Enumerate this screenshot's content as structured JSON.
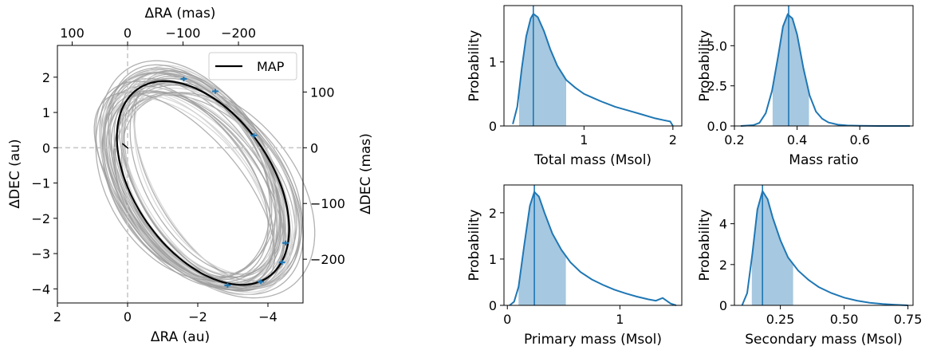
{
  "chart_data": [
    {
      "type": "line",
      "xlabel": "ΔRA (au)",
      "ylabel": "ΔDEC (au)",
      "top_xlabel": "ΔRA (mas)",
      "right_ylabel": "ΔDEC (mas)",
      "xlim": [
        2,
        -5
      ],
      "ylim": [
        -4.4,
        2.9
      ],
      "x_ticks": [
        2,
        0,
        -2,
        -4
      ],
      "x_tick_labels": [
        "2",
        "0",
        "−2",
        "−4"
      ],
      "y_ticks": [
        2,
        1,
        0,
        -1,
        -2,
        -3,
        -4
      ],
      "y_tick_labels": [
        "2",
        "1",
        "0",
        "−1",
        "−2",
        "−3",
        "−4"
      ],
      "top_ticks_mas": [
        100,
        0,
        -100,
        -200
      ],
      "top_tick_labels": [
        "100",
        "0",
        "−100",
        "−200"
      ],
      "right_ticks_mas": [
        100,
        0,
        -100,
        -200
      ],
      "right_tick_labels": [
        "100",
        "0",
        "−100",
        "−200"
      ],
      "au_per_mas": 0.0158,
      "legend": {
        "position": "top-right",
        "entries": [
          "MAP"
        ]
      },
      "reference_lines": {
        "x": 0,
        "y": 0,
        "style": "dashed"
      },
      "map_orbit": {
        "center": [
          -2.15,
          -1.0
        ],
        "semi_major": 3.25,
        "semi_minor": 1.95,
        "angle_deg": 55
      },
      "sample_orbit_count": 44,
      "observations": [
        {
          "x": -1.6,
          "y": 1.95
        },
        {
          "x": -2.5,
          "y": 1.6
        },
        {
          "x": -3.6,
          "y": 0.35
        },
        {
          "x": -4.5,
          "y": -2.7
        },
        {
          "x": -4.4,
          "y": -3.25
        },
        {
          "x": -3.8,
          "y": -3.8
        },
        {
          "x": -2.85,
          "y": -3.9
        }
      ],
      "colors": {
        "map": "#000000",
        "samples": "#9e9e9e",
        "observations": "#1f77b4",
        "refline": "#c8c8c8"
      }
    },
    {
      "type": "area",
      "xlabel": "Total mass (Msol)",
      "ylabel": "Probability",
      "xlim": [
        0.1,
        2.1
      ],
      "ylim": [
        0,
        1.88
      ],
      "x_ticks": [
        1,
        2
      ],
      "x_tick_labels": [
        "1",
        "2"
      ],
      "y_ticks": [
        0,
        1
      ],
      "y_tick_labels": [
        "0",
        "1"
      ],
      "x": [
        0.2,
        0.25,
        0.3,
        0.35,
        0.4,
        0.43,
        0.48,
        0.55,
        0.62,
        0.7,
        0.8,
        0.9,
        1.0,
        1.1,
        1.2,
        1.35,
        1.5,
        1.65,
        1.8,
        1.9,
        1.97,
        2.0
      ],
      "y": [
        0.03,
        0.3,
        0.9,
        1.4,
        1.68,
        1.75,
        1.7,
        1.48,
        1.2,
        0.94,
        0.72,
        0.6,
        0.5,
        0.44,
        0.38,
        0.3,
        0.24,
        0.18,
        0.12,
        0.09,
        0.07,
        0.0
      ],
      "marker": 0.43,
      "interval": [
        0.27,
        0.8
      ]
    },
    {
      "type": "area",
      "xlabel": "Mass ratio",
      "ylabel": "Probability",
      "xlim": [
        0.2,
        0.77
      ],
      "ylim": [
        0,
        7.5
      ],
      "x_ticks": [
        0.2,
        0.4,
        0.6
      ],
      "x_tick_labels": [
        "0.2",
        "0.4",
        "0.6"
      ],
      "y_ticks": [
        0.0,
        2.5,
        5.0
      ],
      "y_tick_labels": [
        "0.0",
        "2.5",
        "5.0"
      ],
      "x": [
        0.22,
        0.26,
        0.28,
        0.3,
        0.32,
        0.34,
        0.355,
        0.37,
        0.385,
        0.4,
        0.42,
        0.44,
        0.46,
        0.48,
        0.5,
        0.53,
        0.56,
        0.6,
        0.66,
        0.72,
        0.76
      ],
      "y": [
        0.0,
        0.05,
        0.2,
        0.8,
        2.2,
        4.4,
        6.2,
        6.95,
        6.7,
        5.7,
        3.6,
        1.9,
        0.9,
        0.45,
        0.22,
        0.08,
        0.03,
        0.01,
        0.0,
        0.0,
        0.0
      ],
      "marker": 0.373,
      "interval": [
        0.322,
        0.438
      ]
    },
    {
      "type": "area",
      "xlabel": "Primary mass (Msol)",
      "ylabel": "Probability",
      "xlim": [
        -0.03,
        1.55
      ],
      "ylim": [
        0,
        2.6
      ],
      "x_ticks": [
        0,
        1
      ],
      "x_tick_labels": [
        "0",
        "1"
      ],
      "y_ticks": [
        0,
        1,
        2
      ],
      "y_tick_labels": [
        "0",
        "1",
        "2"
      ],
      "x": [
        0.02,
        0.06,
        0.1,
        0.15,
        0.2,
        0.24,
        0.28,
        0.33,
        0.4,
        0.48,
        0.56,
        0.65,
        0.75,
        0.85,
        0.95,
        1.05,
        1.15,
        1.25,
        1.32,
        1.38,
        1.45,
        1.5
      ],
      "y": [
        0.0,
        0.08,
        0.4,
        1.3,
        2.15,
        2.45,
        2.35,
        2.0,
        1.55,
        1.2,
        0.93,
        0.72,
        0.56,
        0.44,
        0.34,
        0.26,
        0.19,
        0.13,
        0.1,
        0.16,
        0.04,
        0.0
      ],
      "marker": 0.24,
      "interval": [
        0.1,
        0.52
      ]
    },
    {
      "type": "area",
      "xlabel": "Secondary mass (Msol)",
      "ylabel": "Probability",
      "xlim": [
        0.07,
        0.77
      ],
      "ylim": [
        0,
        5.9
      ],
      "x_ticks": [
        0.25,
        0.5,
        0.75
      ],
      "x_tick_labels": [
        "0.25",
        "0.50",
        "0.75"
      ],
      "y_ticks": [
        0,
        2,
        4
      ],
      "y_tick_labels": [
        "0",
        "2",
        "4"
      ],
      "x": [
        0.1,
        0.12,
        0.14,
        0.16,
        0.18,
        0.2,
        0.22,
        0.25,
        0.28,
        0.32,
        0.36,
        0.4,
        0.45,
        0.5,
        0.55,
        0.6,
        0.65,
        0.7,
        0.75
      ],
      "y": [
        0.0,
        0.6,
        2.5,
        4.7,
        5.6,
        5.2,
        4.3,
        3.2,
        2.35,
        1.7,
        1.25,
        0.9,
        0.6,
        0.38,
        0.23,
        0.13,
        0.07,
        0.03,
        0.0
      ],
      "marker": 0.18,
      "interval": [
        0.138,
        0.3
      ]
    }
  ]
}
